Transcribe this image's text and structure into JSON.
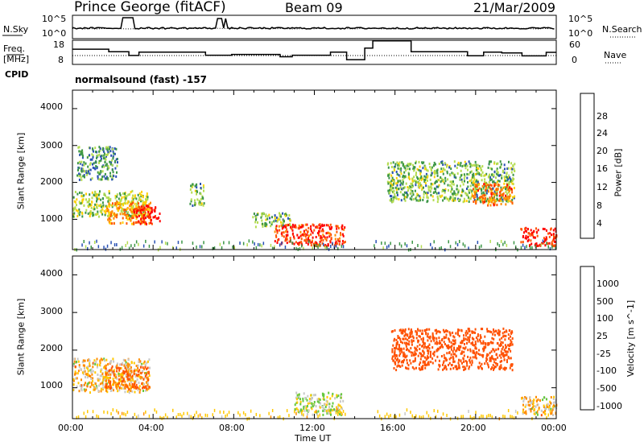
{
  "header": {
    "station": "Prince George (fitACF)",
    "beam": "Beam 09",
    "date": "21/Mar/2009"
  },
  "sky_panel": {
    "left_label": "N.Sky",
    "right_label": "N.Search",
    "tick_top": "10^5",
    "tick_bottom": "10^0"
  },
  "freq_panel": {
    "left_label_1": "Freq.",
    "left_label_2": "[MHz]",
    "cpid_label": "CPID",
    "left_ticks": [
      "18",
      "8"
    ],
    "right_ticks": [
      "60",
      "0"
    ],
    "right_label": "Nave"
  },
  "mode_text": "normalsound (fast) -157",
  "axes": {
    "ylabel": "Slant Range [km]",
    "yticks": [
      "4000",
      "3000",
      "2000",
      "1000"
    ],
    "xticks": [
      "00:00",
      "04:00",
      "08:00",
      "12:00",
      "16:00",
      "20:00",
      "00:00"
    ],
    "xlabel": "Time UT"
  },
  "power_scale": {
    "label": "Power [dB]",
    "ticks": [
      "28",
      "24",
      "20",
      "16",
      "12",
      "8",
      "4"
    ],
    "colors": [
      "#ff0000",
      "#ff5500",
      "#ff8c00",
      "#ffd000",
      "#b4dc50",
      "#3c9646",
      "#2850b4",
      "#0000ff"
    ]
  },
  "velocity_scale": {
    "label": "Velocity [m s^-1]",
    "ticks": [
      "1000",
      "500",
      "100",
      "25",
      "-25",
      "-100",
      "-500",
      "-1000"
    ],
    "colors": [
      "#1e3cb4",
      "#3c8c3c",
      "#64c83c",
      "#c8c8c8",
      "#ffc800",
      "#ff8c00",
      "#ff5000",
      "#ff0000"
    ]
  },
  "chart_data": {
    "type": "heatmap",
    "title": "Prince George (fitACF) Beam 09 21/Mar/2009",
    "xlabel": "Time UT",
    "ylabel": "Slant Range [km]",
    "xlim_hours": [
      0,
      24
    ],
    "ylim_km": [
      180,
      4500
    ],
    "gap_hours": [
      13.6,
      14.9
    ],
    "freq_mhz_steps": [
      [
        0,
        14.5
      ],
      [
        1.8,
        13.3
      ],
      [
        2.8,
        11.5
      ],
      [
        3.3,
        13.1
      ],
      [
        6.6,
        11.6
      ],
      [
        7.9,
        12.0
      ],
      [
        10.3,
        10.9
      ],
      [
        10.9,
        11.6
      ],
      [
        12.8,
        13.1
      ],
      [
        13.6,
        9.5
      ],
      [
        14.5,
        15.0
      ],
      [
        14.9,
        18.5
      ],
      [
        16.8,
        13.3
      ],
      [
        18.2,
        13.3
      ],
      [
        19.6,
        11.4
      ],
      [
        20.4,
        13.1
      ],
      [
        21.3,
        12.7
      ],
      [
        22.3,
        11.3
      ],
      [
        23.5,
        13.0
      ],
      [
        24.0,
        13.0
      ]
    ],
    "power_regions_km": [
      {
        "t": [
          0.0,
          3.7
        ],
        "r": [
          1100,
          1800
        ],
        "power_db": 14
      },
      {
        "t": [
          1.6,
          3.9
        ],
        "r": [
          900,
          1500
        ],
        "power_db": 22
      },
      {
        "t": [
          3.0,
          4.3
        ],
        "r": [
          900,
          1400
        ],
        "power_db": 30
      },
      {
        "t": [
          0.2,
          2.2
        ],
        "r": [
          2100,
          3000
        ],
        "power_db": 10
      },
      {
        "t": [
          5.8,
          6.5
        ],
        "r": [
          1400,
          2000
        ],
        "power_db": 12
      },
      {
        "t": [
          8.9,
          10.8
        ],
        "r": [
          800,
          1200
        ],
        "power_db": 12
      },
      {
        "t": [
          10.0,
          13.5
        ],
        "r": [
          300,
          900
        ],
        "power_db": 28
      },
      {
        "t": [
          15.6,
          21.9
        ],
        "r": [
          1500,
          2600
        ],
        "power_db": 12
      },
      {
        "t": [
          19.8,
          21.8
        ],
        "r": [
          1400,
          2000
        ],
        "power_db": 24
      },
      {
        "t": [
          22.2,
          24.0
        ],
        "r": [
          300,
          800
        ],
        "power_db": 30
      }
    ],
    "velocity_regions_km": [
      {
        "t": [
          0.0,
          3.8
        ],
        "r": [
          900,
          1800
        ],
        "velocity_ms": 0
      },
      {
        "t": [
          1.6,
          3.8
        ],
        "r": [
          1000,
          1600
        ],
        "velocity_ms": -100
      },
      {
        "t": [
          11.0,
          13.4
        ],
        "r": [
          300,
          900
        ],
        "velocity_ms": 80
      },
      {
        "t": [
          15.8,
          21.8
        ],
        "r": [
          1500,
          2600
        ],
        "velocity_ms": -300
      },
      {
        "t": [
          22.2,
          24.0
        ],
        "r": [
          300,
          800
        ],
        "velocity_ms": 0
      }
    ]
  }
}
